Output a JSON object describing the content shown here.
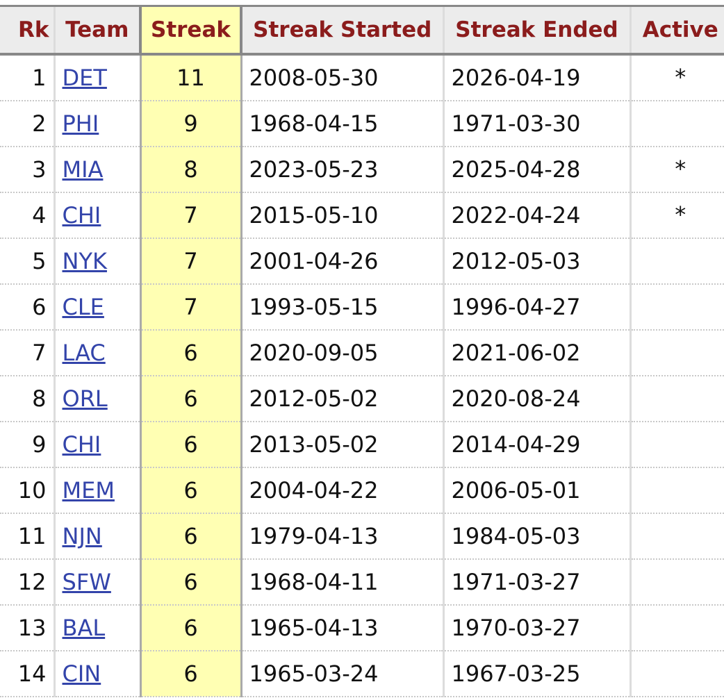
{
  "table": {
    "headers": [
      "Rk",
      "Team",
      "Streak",
      "Streak Started",
      "Streak Ended",
      "Active"
    ],
    "rows": [
      {
        "rk": "1",
        "team": "DET",
        "streak": "11",
        "started": "2008-05-30",
        "ended": "2026-04-19",
        "active": "*"
      },
      {
        "rk": "2",
        "team": "PHI",
        "streak": "9",
        "started": "1968-04-15",
        "ended": "1971-03-30",
        "active": ""
      },
      {
        "rk": "3",
        "team": "MIA",
        "streak": "8",
        "started": "2023-05-23",
        "ended": "2025-04-28",
        "active": "*"
      },
      {
        "rk": "4",
        "team": "CHI",
        "streak": "7",
        "started": "2015-05-10",
        "ended": "2022-04-24",
        "active": "*"
      },
      {
        "rk": "5",
        "team": "NYK",
        "streak": "7",
        "started": "2001-04-26",
        "ended": "2012-05-03",
        "active": ""
      },
      {
        "rk": "6",
        "team": "CLE",
        "streak": "7",
        "started": "1993-05-15",
        "ended": "1996-04-27",
        "active": ""
      },
      {
        "rk": "7",
        "team": "LAC",
        "streak": "6",
        "started": "2020-09-05",
        "ended": "2021-06-02",
        "active": ""
      },
      {
        "rk": "8",
        "team": "ORL",
        "streak": "6",
        "started": "2012-05-02",
        "ended": "2020-08-24",
        "active": ""
      },
      {
        "rk": "9",
        "team": "CHI",
        "streak": "6",
        "started": "2013-05-02",
        "ended": "2014-04-29",
        "active": ""
      },
      {
        "rk": "10",
        "team": "MEM",
        "streak": "6",
        "started": "2004-04-22",
        "ended": "2006-05-01",
        "active": ""
      },
      {
        "rk": "11",
        "team": "NJN",
        "streak": "6",
        "started": "1979-04-13",
        "ended": "1984-05-03",
        "active": ""
      },
      {
        "rk": "12",
        "team": "SFW",
        "streak": "6",
        "started": "1968-04-11",
        "ended": "1971-03-27",
        "active": ""
      },
      {
        "rk": "13",
        "team": "BAL",
        "streak": "6",
        "started": "1965-04-13",
        "ended": "1970-03-27",
        "active": ""
      },
      {
        "rk": "14",
        "team": "CIN",
        "streak": "6",
        "started": "1965-03-24",
        "ended": "1967-03-25",
        "active": ""
      }
    ]
  },
  "colors": {
    "header_text": "#8b1c1c",
    "sorted_column_bg": "#ffffb3",
    "link": "#3344aa"
  }
}
